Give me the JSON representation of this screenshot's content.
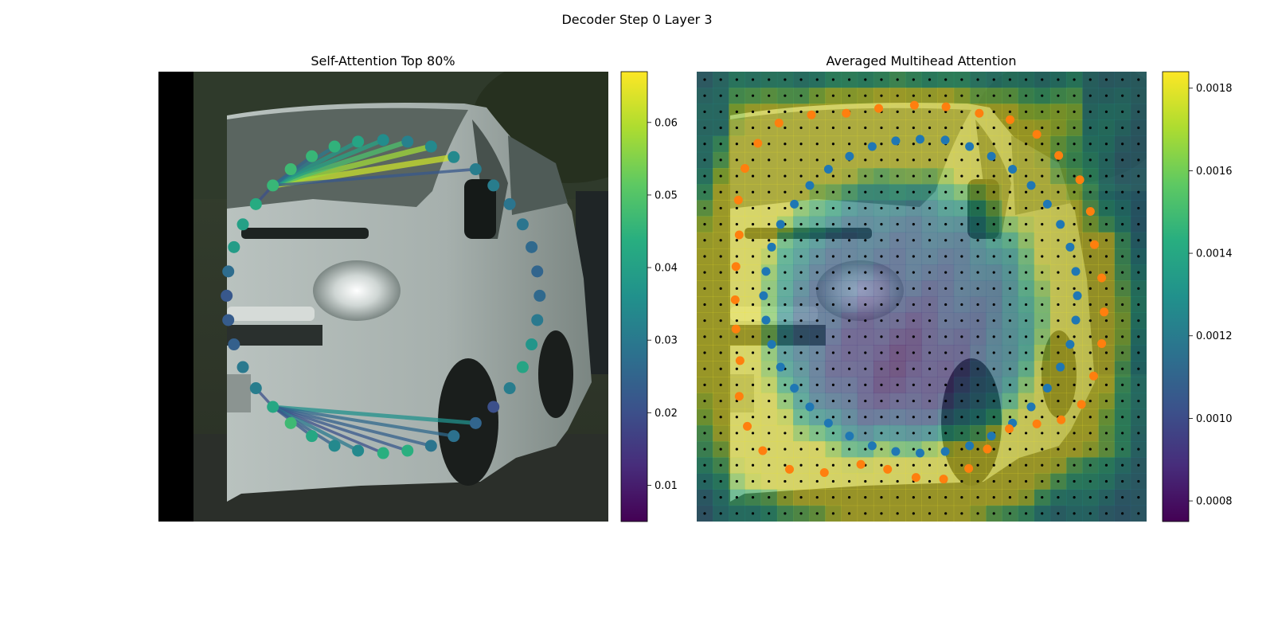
{
  "suptitle": "Decoder Step 0 Layer 3",
  "chart_data": [
    {
      "type": "scatter",
      "title": "Self-Attention Top 80%",
      "background": "photo of a white van (street scene)",
      "colormap": "viridis",
      "colorbar": {
        "range": [
          0.005,
          0.067
        ],
        "ticks": [
          0.01,
          0.02,
          0.03,
          0.04,
          0.05,
          0.06
        ],
        "tick_labels": [
          "0.01",
          "0.02",
          "0.03",
          "0.04",
          "0.05",
          "0.06"
        ]
      },
      "points": [
        {
          "x": 559,
          "y": 193,
          "v": 0.034
        },
        {
          "x": 531,
          "y": 180,
          "v": 0.034
        },
        {
          "x": 502,
          "y": 174,
          "v": 0.032
        },
        {
          "x": 472,
          "y": 172,
          "v": 0.035
        },
        {
          "x": 441,
          "y": 174,
          "v": 0.041
        },
        {
          "x": 412,
          "y": 180,
          "v": 0.045
        },
        {
          "x": 384,
          "y": 192,
          "v": 0.046
        },
        {
          "x": 358,
          "y": 208,
          "v": 0.047
        },
        {
          "x": 336,
          "y": 228,
          "v": 0.046
        },
        {
          "x": 315,
          "y": 251,
          "v": 0.043
        },
        {
          "x": 299,
          "y": 276,
          "v": 0.04
        },
        {
          "x": 288,
          "y": 304,
          "v": 0.039
        },
        {
          "x": 281,
          "y": 334,
          "v": 0.027
        },
        {
          "x": 279,
          "y": 364,
          "v": 0.022
        },
        {
          "x": 281,
          "y": 394,
          "v": 0.023
        },
        {
          "x": 288,
          "y": 424,
          "v": 0.024
        },
        {
          "x": 299,
          "y": 452,
          "v": 0.03
        },
        {
          "x": 315,
          "y": 478,
          "v": 0.031
        },
        {
          "x": 336,
          "y": 501,
          "v": 0.042
        },
        {
          "x": 358,
          "y": 521,
          "v": 0.047
        },
        {
          "x": 384,
          "y": 537,
          "v": 0.042
        },
        {
          "x": 412,
          "y": 549,
          "v": 0.034
        },
        {
          "x": 441,
          "y": 555,
          "v": 0.034
        },
        {
          "x": 472,
          "y": 558,
          "v": 0.044
        },
        {
          "x": 502,
          "y": 555,
          "v": 0.044
        },
        {
          "x": 531,
          "y": 549,
          "v": 0.029
        },
        {
          "x": 559,
          "y": 537,
          "v": 0.028
        },
        {
          "x": 586,
          "y": 521,
          "v": 0.025
        },
        {
          "x": 608,
          "y": 501,
          "v": 0.02
        },
        {
          "x": 628,
          "y": 478,
          "v": 0.031
        },
        {
          "x": 644,
          "y": 452,
          "v": 0.041
        },
        {
          "x": 655,
          "y": 424,
          "v": 0.037
        },
        {
          "x": 662,
          "y": 394,
          "v": 0.03
        },
        {
          "x": 665,
          "y": 364,
          "v": 0.026
        },
        {
          "x": 662,
          "y": 334,
          "v": 0.025
        },
        {
          "x": 655,
          "y": 304,
          "v": 0.026
        },
        {
          "x": 644,
          "y": 276,
          "v": 0.029
        },
        {
          "x": 628,
          "y": 251,
          "v": 0.029
        },
        {
          "x": 608,
          "y": 228,
          "v": 0.031
        },
        {
          "x": 586,
          "y": 208,
          "v": 0.031
        }
      ],
      "links": [
        {
          "from": 8,
          "to": 0,
          "w": 0.062
        },
        {
          "from": 8,
          "to": 1,
          "w": 0.058
        },
        {
          "from": 8,
          "to": 2,
          "w": 0.049
        },
        {
          "from": 8,
          "to": 3,
          "w": 0.041
        },
        {
          "from": 8,
          "to": 4,
          "w": 0.038
        },
        {
          "from": 8,
          "to": 5,
          "w": 0.03
        },
        {
          "from": 8,
          "to": 6,
          "w": 0.025
        },
        {
          "from": 8,
          "to": 39,
          "w": 0.022
        },
        {
          "from": 8,
          "to": 9,
          "w": 0.02
        },
        {
          "from": 18,
          "to": 27,
          "w": 0.036
        },
        {
          "from": 18,
          "to": 26,
          "w": 0.026
        },
        {
          "from": 18,
          "to": 25,
          "w": 0.024
        },
        {
          "from": 18,
          "to": 24,
          "w": 0.022
        },
        {
          "from": 18,
          "to": 23,
          "w": 0.02
        },
        {
          "from": 18,
          "to": 22,
          "w": 0.03
        },
        {
          "from": 18,
          "to": 21,
          "w": 0.024
        },
        {
          "from": 18,
          "to": 20,
          "w": 0.022
        },
        {
          "from": 18,
          "to": 17,
          "w": 0.02
        }
      ]
    },
    {
      "type": "heatmap",
      "title": "Averaged Multihead Attention",
      "background": "photo of a white van (street scene), overlaid with a 28x28 attention heatmap",
      "colormap": "viridis",
      "grid_size": 28,
      "colorbar": {
        "range": [
          0.00075,
          0.00184
        ],
        "ticks": [
          0.0008,
          0.001,
          0.0012,
          0.0014,
          0.0016,
          0.0018
        ],
        "tick_labels": [
          "0.0008",
          "0.0010",
          "0.0012",
          "0.0014",
          "0.0016",
          "0.0018"
        ]
      },
      "series_colors": {
        "inner": "#1f77b4",
        "outer": "#ff7f0e",
        "grid": "#000000"
      },
      "inner_points": [
        [
          1195,
          180
        ],
        [
          1165,
          172
        ],
        [
          1134,
          171
        ],
        [
          1104,
          173
        ],
        [
          1075,
          180
        ],
        [
          1047,
          192
        ],
        [
          1021,
          208
        ],
        [
          998,
          228
        ],
        [
          979,
          251
        ],
        [
          962,
          276
        ],
        [
          951,
          304
        ],
        [
          944,
          334
        ],
        [
          941,
          364
        ],
        [
          944,
          394
        ],
        [
          951,
          424
        ],
        [
          962,
          452
        ],
        [
          979,
          478
        ],
        [
          998,
          501
        ],
        [
          1021,
          521
        ],
        [
          1047,
          537
        ],
        [
          1075,
          549
        ],
        [
          1104,
          556
        ],
        [
          1134,
          558
        ],
        [
          1165,
          556
        ],
        [
          1195,
          549
        ],
        [
          1222,
          537
        ],
        [
          1248,
          521
        ],
        [
          1271,
          501
        ],
        [
          1291,
          478
        ],
        [
          1307,
          452
        ],
        [
          1319,
          424
        ],
        [
          1326,
          394
        ],
        [
          1328,
          364
        ],
        [
          1326,
          334
        ],
        [
          1319,
          304
        ],
        [
          1307,
          276
        ],
        [
          1291,
          251
        ],
        [
          1271,
          228
        ],
        [
          1248,
          208
        ],
        [
          1222,
          192
        ]
      ],
      "outer_points": [
        [
          1207,
          139
        ],
        [
          1166,
          131
        ],
        [
          1127,
          129
        ],
        [
          1083,
          133
        ],
        [
          1043,
          139
        ],
        [
          1000,
          141
        ],
        [
          960,
          151
        ],
        [
          934,
          176
        ],
        [
          918,
          207
        ],
        [
          910,
          246
        ],
        [
          911,
          289
        ],
        [
          907,
          328
        ],
        [
          906,
          369
        ],
        [
          907,
          405
        ],
        [
          912,
          444
        ],
        [
          911,
          488
        ],
        [
          921,
          525
        ],
        [
          940,
          555
        ],
        [
          973,
          578
        ],
        [
          1016,
          582
        ],
        [
          1061,
          572
        ],
        [
          1094,
          578
        ],
        [
          1129,
          588
        ],
        [
          1163,
          590
        ],
        [
          1194,
          577
        ],
        [
          1217,
          553
        ],
        [
          1244,
          528
        ],
        [
          1278,
          522
        ],
        [
          1308,
          517
        ],
        [
          1333,
          498
        ],
        [
          1348,
          463
        ],
        [
          1358,
          423
        ],
        [
          1361,
          384
        ],
        [
          1358,
          342
        ],
        [
          1349,
          301
        ],
        [
          1344,
          260
        ],
        [
          1331,
          221
        ],
        [
          1305,
          191
        ],
        [
          1278,
          165
        ],
        [
          1245,
          147
        ]
      ]
    }
  ]
}
